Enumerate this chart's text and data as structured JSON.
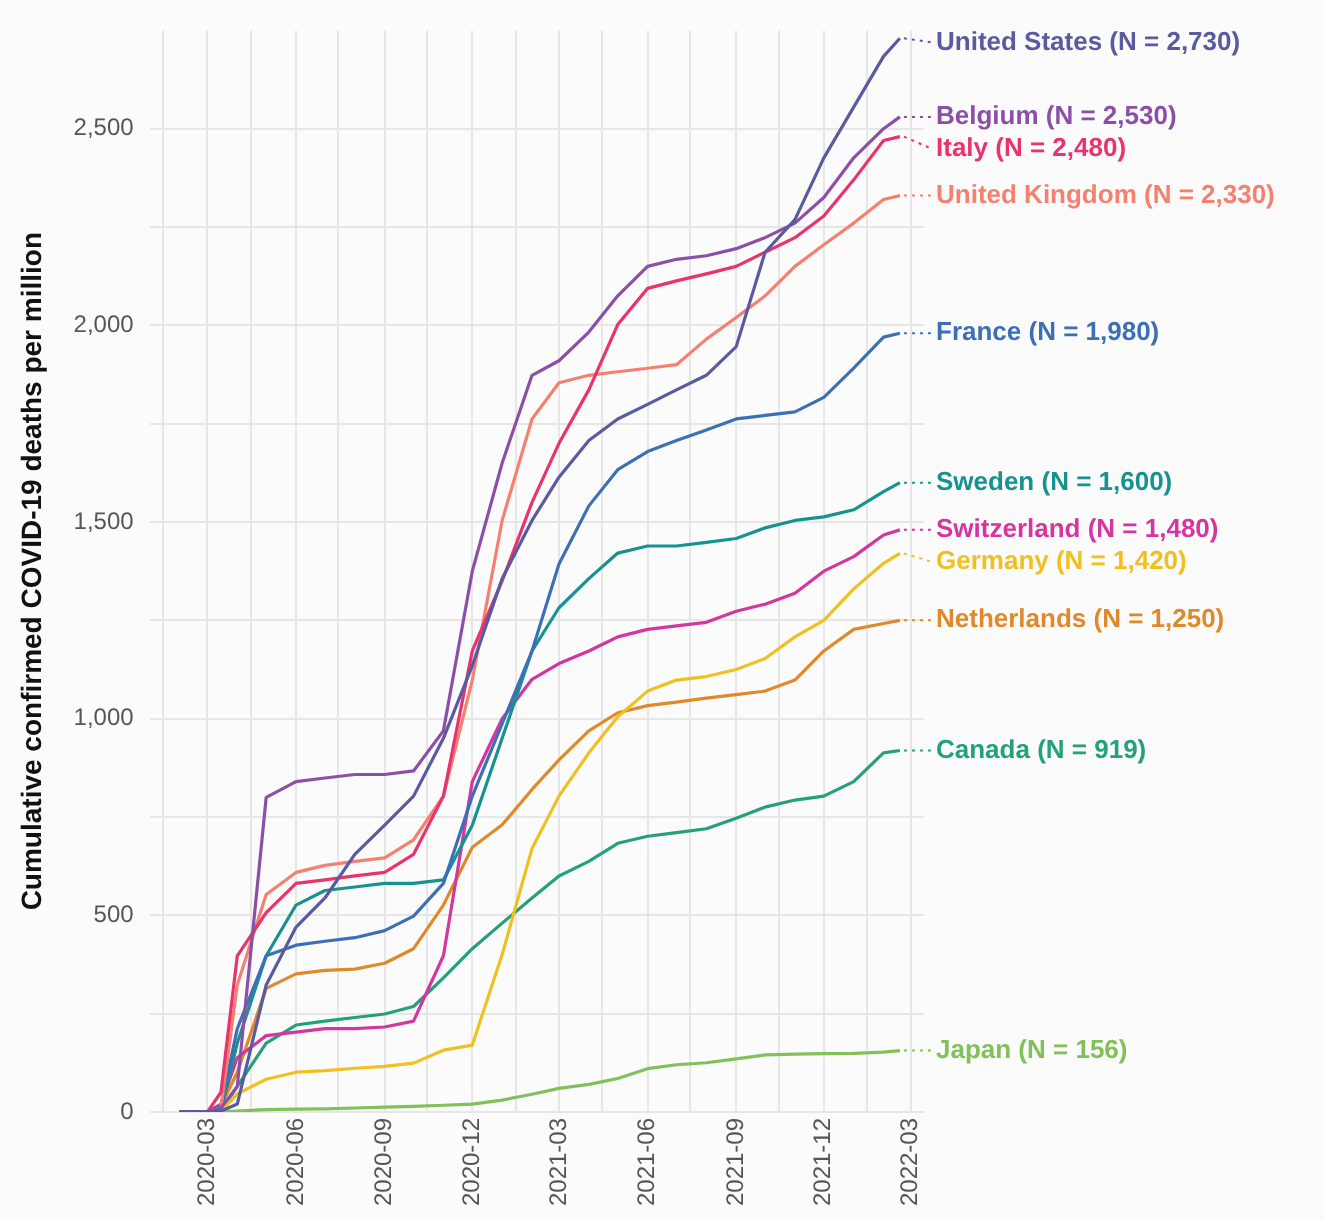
{
  "chart_data": {
    "type": "line",
    "ylabel": "Cumulative confirmed COVID-19 deaths per million",
    "x": [
      "2020-02-01",
      "2020-03-01",
      "2020-03-15",
      "2020-04-01",
      "2020-05-01",
      "2020-06-01",
      "2020-07-01",
      "2020-08-01",
      "2020-09-01",
      "2020-10-01",
      "2020-11-01",
      "2020-12-01",
      "2021-01-01",
      "2021-02-01",
      "2021-03-01",
      "2021-04-01",
      "2021-05-01",
      "2021-06-01",
      "2021-07-01",
      "2021-08-01",
      "2021-09-01",
      "2021-10-01",
      "2021-11-01",
      "2021-12-01",
      "2022-01-01",
      "2022-02-01",
      "2022-02-18"
    ],
    "series": [
      {
        "name": "United States (N = 2,730)",
        "color": "#5a5aa0",
        "values": [
          0,
          0,
          2,
          20,
          323,
          470,
          544,
          655,
          729,
          803,
          950,
          1135,
          1356,
          1504,
          1614,
          1707,
          1762,
          1799,
          1836,
          1873,
          1946,
          2186,
          2269,
          2426,
          2555,
          2684,
          2730
        ]
      },
      {
        "name": "Belgium (N = 2,530)",
        "color": "#8b4fa8",
        "values": [
          0,
          0,
          10,
          65,
          800,
          840,
          849,
          858,
          858,
          867,
          969,
          1375,
          1650,
          1873,
          1910,
          1983,
          2075,
          2150,
          2168,
          2177,
          2195,
          2223,
          2260,
          2325,
          2426,
          2500,
          2530
        ]
      },
      {
        "name": "Italy (N = 2,480)",
        "color": "#e8336e",
        "values": [
          0,
          0,
          50,
          397,
          507,
          581,
          590,
          600,
          609,
          655,
          803,
          1172,
          1350,
          1550,
          1700,
          1836,
          2002,
          2094,
          2113,
          2131,
          2150,
          2186,
          2223,
          2278,
          2370,
          2470,
          2480
        ]
      },
      {
        "name": "United Kingdom (N = 2,330)",
        "color": "#f48070",
        "values": [
          0,
          0,
          10,
          323,
          553,
          609,
          627,
          637,
          646,
          692,
          803,
          1098,
          1504,
          1762,
          1854,
          1873,
          1882,
          1891,
          1900,
          1965,
          2020,
          2075,
          2150,
          2205,
          2260,
          2320,
          2330
        ]
      },
      {
        "name": "France (N = 1,980)",
        "color": "#3d6fb6",
        "values": [
          0,
          0,
          15,
          212,
          397,
          424,
          434,
          443,
          461,
          498,
          581,
          803,
          987,
          1172,
          1393,
          1541,
          1633,
          1679,
          1707,
          1734,
          1762,
          1771,
          1780,
          1817,
          1891,
          1970,
          1980
        ]
      },
      {
        "name": "Sweden (N = 1,600)",
        "color": "#16928f",
        "values": [
          0,
          0,
          3,
          175,
          397,
          526,
          563,
          572,
          581,
          581,
          590,
          729,
          950,
          1172,
          1282,
          1356,
          1421,
          1439,
          1439,
          1448,
          1458,
          1485,
          1504,
          1513,
          1531,
          1577,
          1600
        ]
      },
      {
        "name": "Switzerland (N = 1,480)",
        "color": "#d4359f",
        "values": [
          0,
          0,
          20,
          138,
          194,
          203,
          212,
          212,
          216,
          231,
          397,
          840,
          1000,
          1100,
          1140,
          1172,
          1208,
          1227,
          1236,
          1245,
          1273,
          1291,
          1319,
          1375,
          1412,
          1467,
          1480
        ]
      },
      {
        "name": "Germany (N = 1,420)",
        "color": "#f0c020",
        "values": [
          0,
          0,
          2,
          46,
          83,
          101,
          105,
          111,
          116,
          124,
          157,
          170,
          400,
          670,
          803,
          913,
          1005,
          1070,
          1098,
          1107,
          1125,
          1153,
          1208,
          1250,
          1330,
          1395,
          1420
        ]
      },
      {
        "name": "Netherlands (N = 1,250)",
        "color": "#e0892a",
        "values": [
          0,
          0,
          15,
          101,
          314,
          351,
          360,
          363,
          378,
          415,
          526,
          673,
          730,
          820,
          895,
          969,
          1015,
          1033,
          1042,
          1052,
          1061,
          1070,
          1098,
          1172,
          1227,
          1242,
          1250
        ]
      },
      {
        "name": "Canada (N = 919)",
        "color": "#24a07a",
        "values": [
          0,
          0,
          2,
          65,
          175,
          221,
          231,
          240,
          249,
          268,
          341,
          415,
          480,
          544,
          600,
          637,
          683,
          701,
          710,
          720,
          747,
          775,
          793,
          803,
          840,
          913,
          919
        ]
      },
      {
        "name": "Japan (N = 156)",
        "color": "#82c05a",
        "values": [
          0,
          0,
          0,
          2,
          6,
          7,
          8,
          10,
          12,
          14,
          17,
          20,
          30,
          45,
          60,
          70,
          85,
          110,
          120,
          125,
          135,
          145,
          147,
          148,
          149,
          152,
          156
        ]
      }
    ],
    "xlim": [
      "2020-01-01",
      "2022-03-15"
    ],
    "xticks": [
      {
        "value": "2020-01-15",
        "label": null
      },
      "2020-03",
      {
        "value": "2020-04-15",
        "label": null
      },
      "2020-06",
      {
        "value": "2020-07-15",
        "label": null
      },
      "2020-09",
      {
        "value": "2020-10-15",
        "label": null
      },
      "2020-12",
      {
        "value": "2021-01-15",
        "label": null
      },
      "2021-03",
      {
        "value": "2021-04-15",
        "label": null
      },
      "2021-06",
      {
        "value": "2021-07-15",
        "label": null
      },
      "2021-09",
      {
        "value": "2021-10-15",
        "label": null
      },
      "2021-12",
      {
        "value": "2022-01-15",
        "label": null
      },
      "2022-03"
    ],
    "ylim": [
      0,
      2750
    ],
    "yticks": [
      0,
      {
        "value": 250,
        "label": null
      },
      {
        "value": 500,
        "label": "500"
      },
      {
        "value": 750,
        "label": null
      },
      {
        "value": 1000,
        "label": "1,000"
      },
      {
        "value": 1250,
        "label": null
      },
      {
        "value": 1500,
        "label": "1,500"
      },
      {
        "value": 1750,
        "label": null
      },
      {
        "value": 2000,
        "label": "2,000"
      },
      {
        "value": 2250,
        "label": null
      },
      {
        "value": 2500,
        "label": "2,500"
      }
    ],
    "grid": true,
    "legend": "right",
    "marker": "none",
    "line_style": "solid"
  }
}
